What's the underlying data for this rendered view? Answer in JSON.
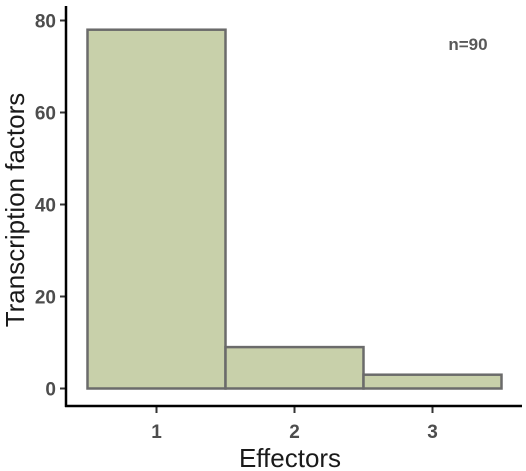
{
  "chart_data": {
    "type": "bar",
    "categories": [
      "1",
      "2",
      "3"
    ],
    "values": [
      78,
      9,
      3
    ],
    "xlabel": "Effectors",
    "ylabel": "Transcription factors",
    "yticks": [
      0,
      20,
      40,
      60,
      80
    ],
    "ylim": [
      0,
      83
    ],
    "annotation": "n=90",
    "annotation_position": "top-right",
    "grid": false,
    "legend": "none",
    "bar_fill": "#c8d0aa",
    "bar_stroke": "#6b6b6b",
    "axis_color": "#000000"
  }
}
